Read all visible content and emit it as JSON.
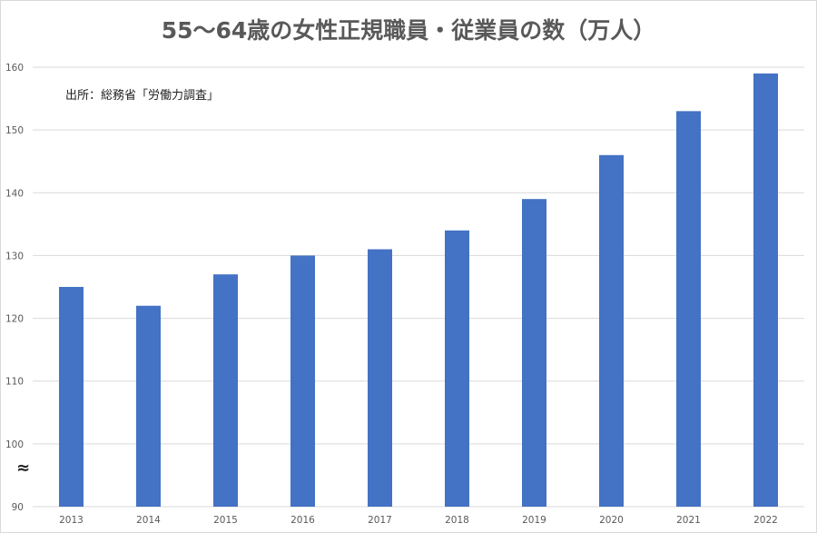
{
  "chart_data": {
    "type": "bar",
    "title": "55～64歳の女性正規職員・従業員の数（万人）",
    "annotation": "出所：総務省「労働力調査」",
    "axis_break_symbol": "≈",
    "categories": [
      "2013",
      "2014",
      "2015",
      "2016",
      "2017",
      "2018",
      "2019",
      "2020",
      "2021",
      "2022"
    ],
    "series": [
      {
        "values": [
          125,
          122,
          127,
          130,
          131,
          134,
          139,
          146,
          153,
          159
        ]
      }
    ],
    "xlabel": "",
    "ylabel": "",
    "ylim": [
      90,
      160
    ],
    "yticks": [
      "90",
      "100",
      "110",
      "120",
      "130",
      "140",
      "150",
      "160"
    ],
    "grid": true,
    "legend": "none",
    "bar_color": "#4472c4",
    "grid_color": "#d9d9d9",
    "title_color": "#595959"
  }
}
